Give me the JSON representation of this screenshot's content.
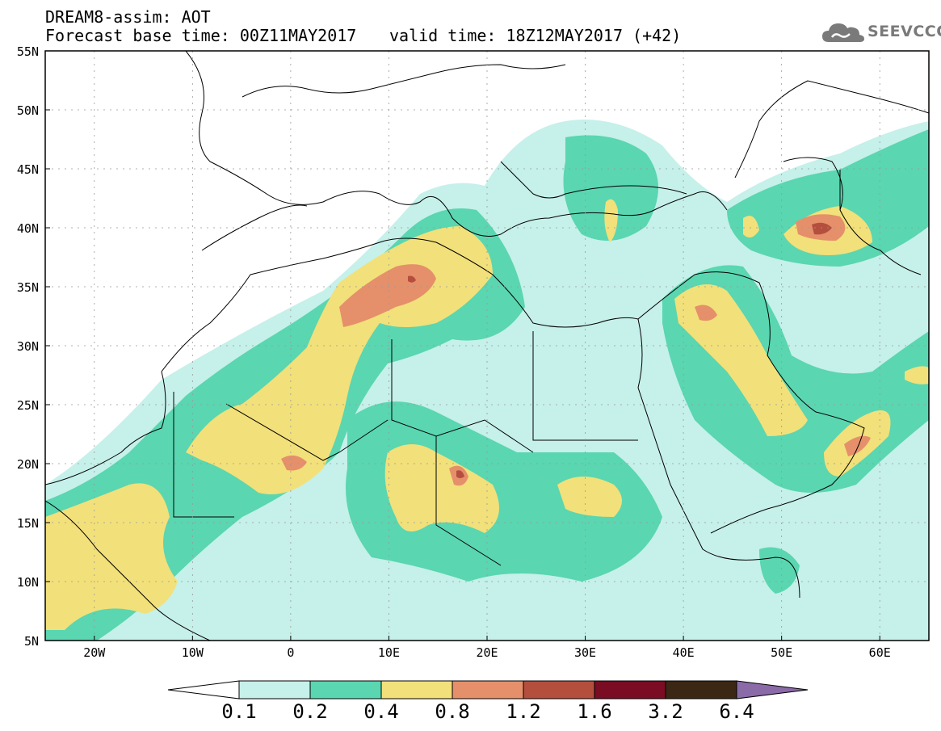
{
  "header": {
    "title_line1": "DREAM8-assim: AOT",
    "title_line2": "Forecast base time: 00Z11MAY2017",
    "valid_time": "valid time: 18Z12MAY2017 (+42)",
    "logo_text": "SEEVCCC"
  },
  "map": {
    "lon_range": [
      -25,
      65
    ],
    "lat_range": [
      5,
      55
    ],
    "lat_labels": [
      "55N",
      "50N",
      "45N",
      "40N",
      "35N",
      "30N",
      "25N",
      "20N",
      "15N",
      "10N",
      "5N"
    ],
    "lon_labels": [
      "20W",
      "10W",
      "0",
      "10E",
      "20E",
      "30E",
      "40E",
      "50E",
      "60E"
    ]
  },
  "colorbar": {
    "levels": [
      "0.1",
      "0.2",
      "0.4",
      "0.8",
      "1.2",
      "1.6",
      "3.2",
      "6.4"
    ],
    "colors": [
      "#ffffff",
      "#c6f0ea",
      "#5ad6b0",
      "#f2e07a",
      "#e5906a",
      "#b44f3e",
      "#7a0c24",
      "#3c2714",
      "#8b6aa8"
    ]
  },
  "colors": {
    "aot_0_1": "#c6f0ea",
    "aot_0_2": "#5ad6b0",
    "aot_0_4": "#f2e07a",
    "aot_0_8": "#e5906a",
    "aot_1_2": "#b44f3e"
  }
}
